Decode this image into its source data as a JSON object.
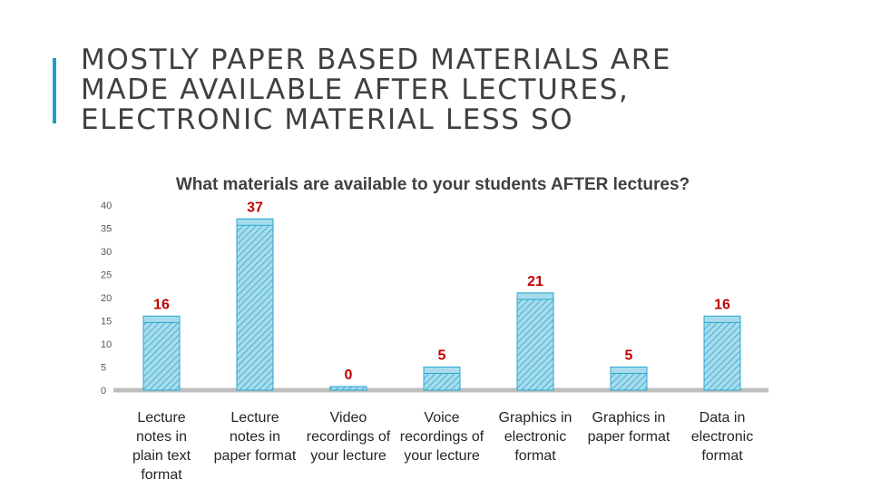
{
  "slide": {
    "title_lines": [
      "MOSTLY PAPER BASED MATERIALS ARE",
      "MADE AVAILABLE AFTER LECTURES,",
      "ELECTRONIC MATERIAL LESS SO"
    ]
  },
  "colors": {
    "accent": "#1b9ec7",
    "bar_fill": "#a8dcec",
    "bar_stroke": "#2aa7cf",
    "hatch": "#2aa7cf",
    "axis_line": "#bfbfbf",
    "title_text": "#404040",
    "label_text": "#c00000"
  },
  "chart_data": {
    "type": "bar",
    "title": "What materials are available to your students AFTER lectures?",
    "categories": [
      [
        "Lecture",
        "notes in",
        "plain text",
        "format"
      ],
      [
        "Lecture",
        "notes in",
        "paper format"
      ],
      [
        "Video",
        "recordings of",
        "your lecture"
      ],
      [
        "Voice",
        "recordings of",
        "your lecture"
      ],
      [
        "Graphics in",
        "electronic",
        "format"
      ],
      [
        "Graphics in",
        "paper format"
      ],
      [
        "Data in",
        "electronic",
        "format"
      ]
    ],
    "values": [
      16,
      37,
      0,
      5,
      21,
      5,
      16
    ],
    "data_labels": [
      "16",
      "37",
      "0",
      "5",
      "21",
      "5",
      "16"
    ],
    "yticks": [
      "0",
      "5",
      "10",
      "15",
      "20",
      "25",
      "30",
      "35",
      "40"
    ],
    "ylim": [
      0,
      40
    ],
    "grid": false,
    "legend": "none",
    "pattern": "diagonal hatch"
  }
}
